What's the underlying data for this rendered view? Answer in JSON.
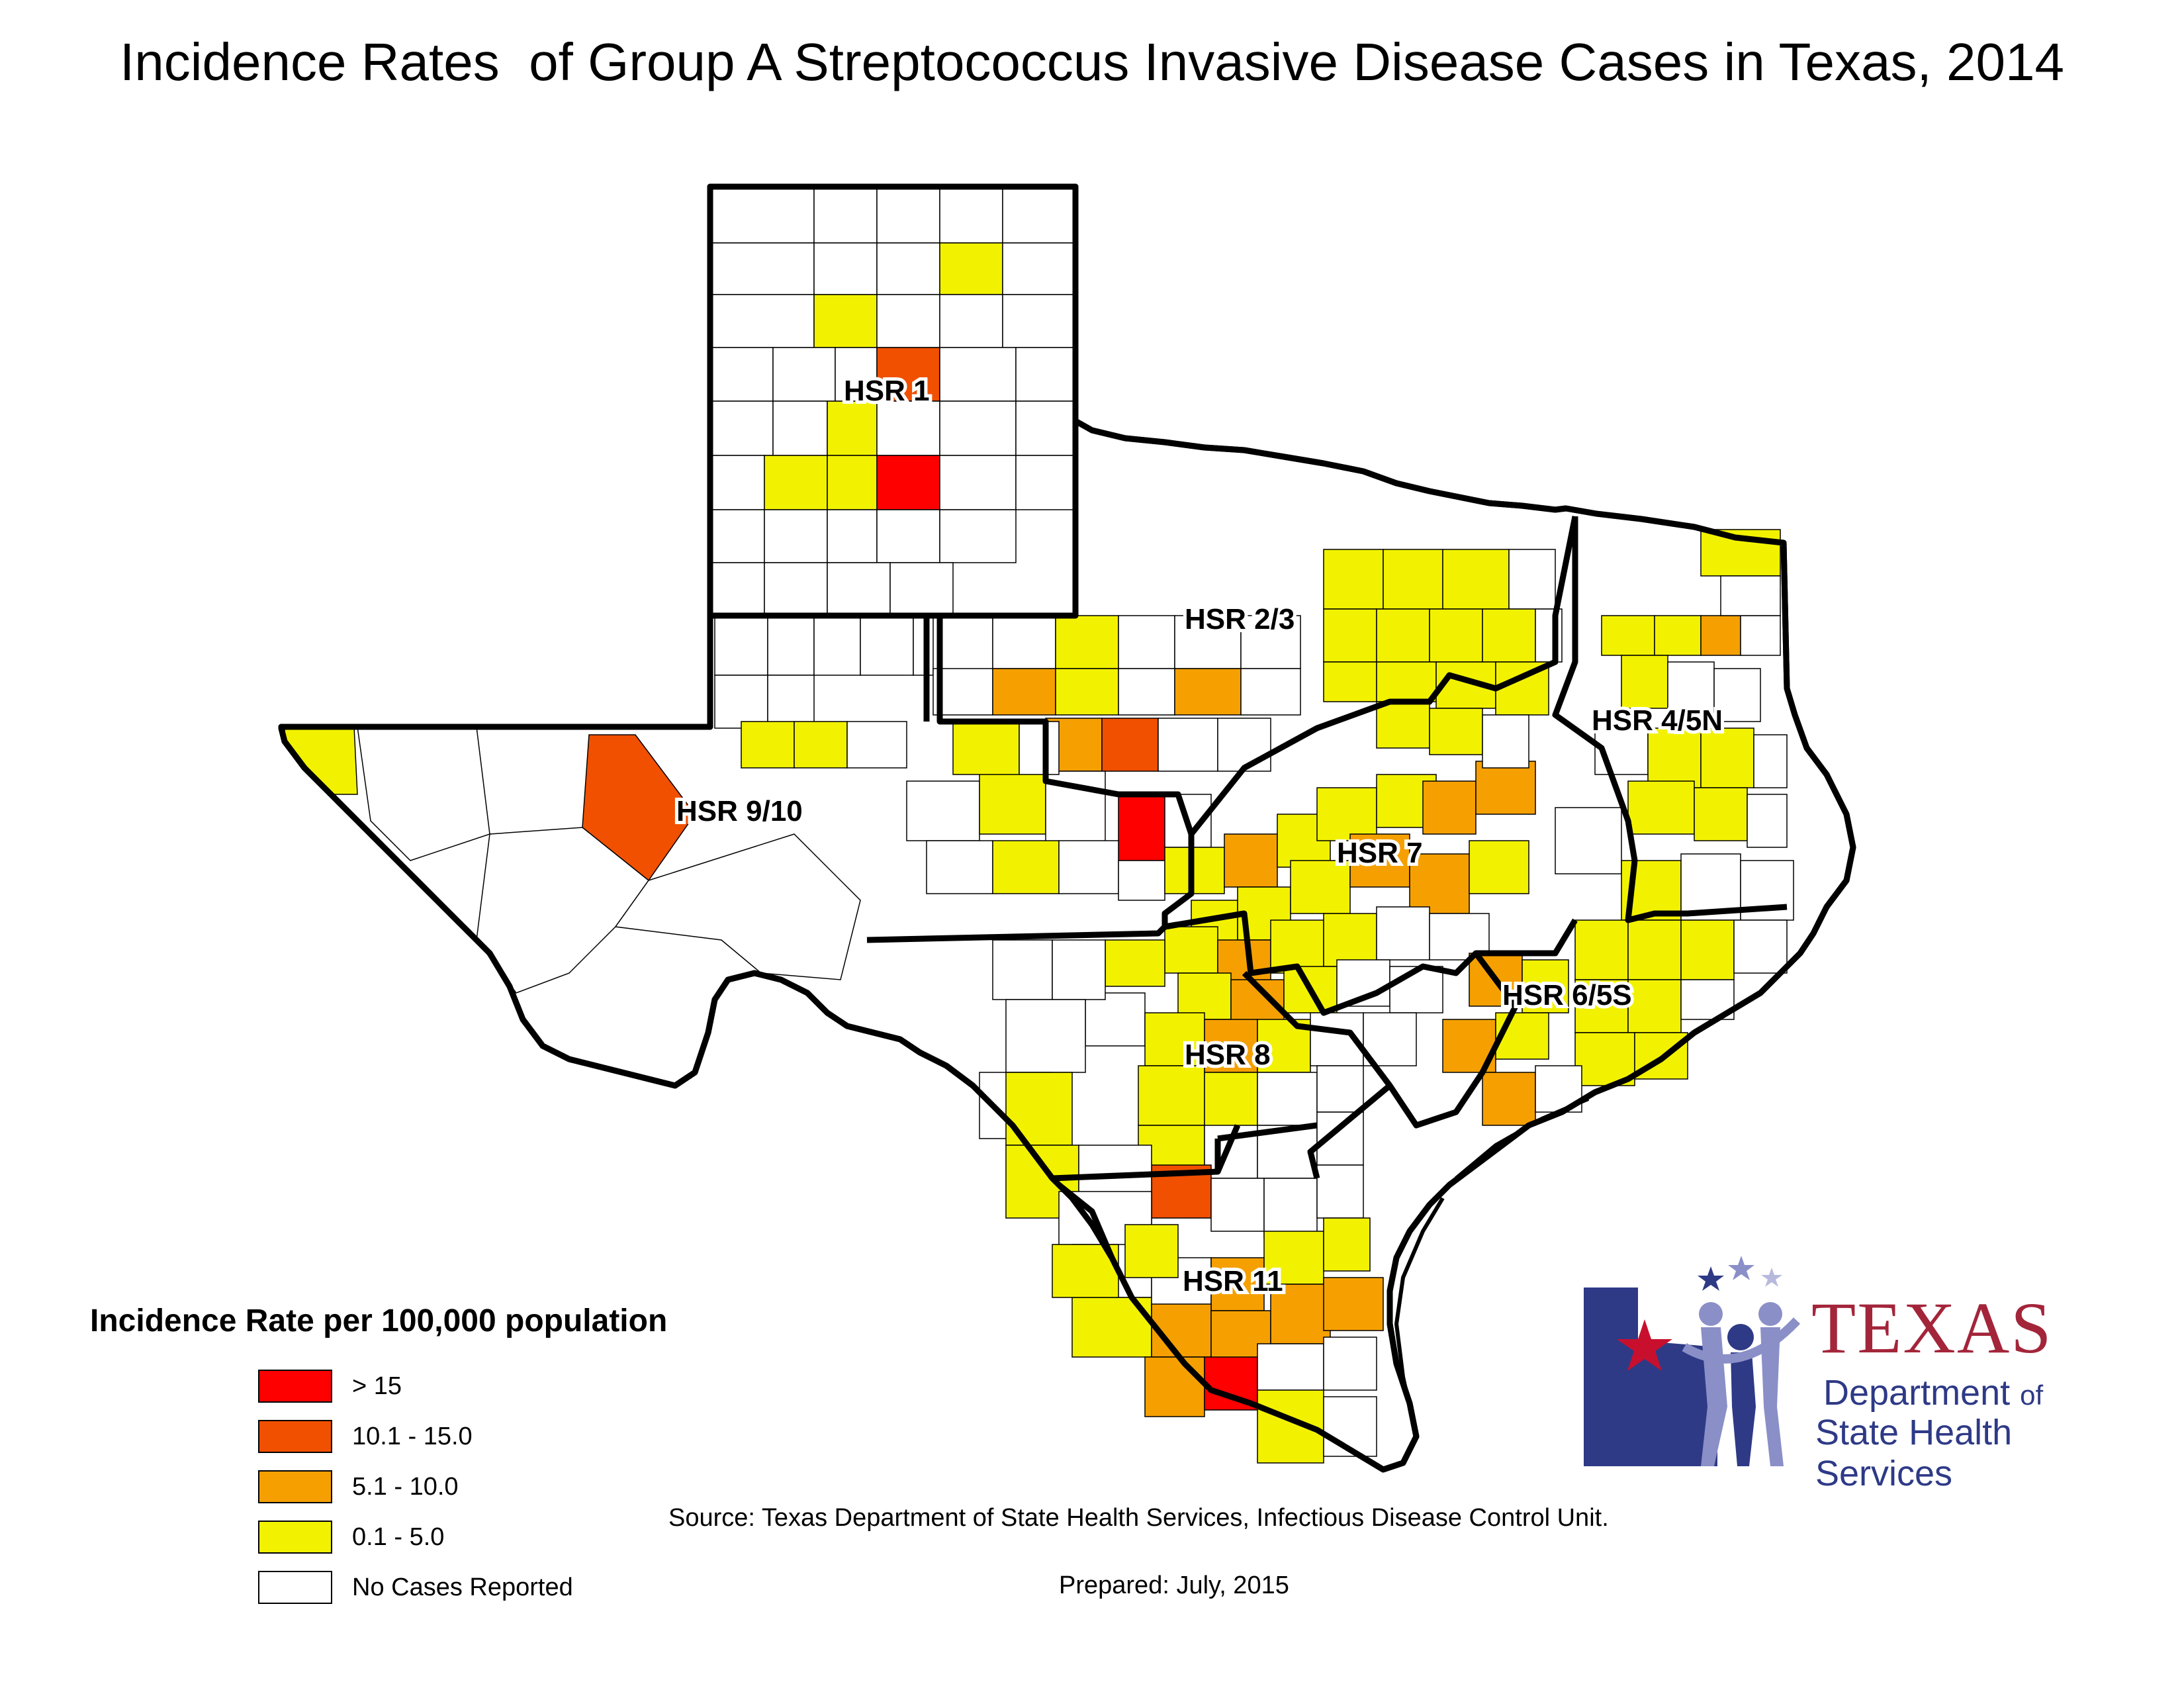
{
  "title": "Incidence Rates  of Group A Streptococcus Invasive Disease Cases in Texas, 2014",
  "colors": {
    "gt15": "#ff0000",
    "r10_15": "#f05000",
    "r5_10": "#f5a000",
    "r0_5": "#f2f200",
    "none": "#ffffff",
    "outline": "#000000",
    "logo_navy": "#2e3a86",
    "logo_red": "#a3253a",
    "logo_lilac": "#8b8fc7"
  },
  "regions": {
    "hsr1": "HSR 1",
    "hsr23": "HSR 2/3",
    "hsr45n": "HSR 4/5N",
    "hsr910": "HSR 9/10",
    "hsr7": "HSR 7",
    "hsr65s": "HSR 6/5S",
    "hsr8": "HSR 8",
    "hsr11": "HSR 11"
  },
  "legend": {
    "title": "Incidence Rate per 100,000 population",
    "items": [
      {
        "label": "> 15",
        "color": "#ff0000"
      },
      {
        "label": "10.1 - 15.0",
        "color": "#f05000"
      },
      {
        "label": "5.1 - 10.0",
        "color": "#f5a000"
      },
      {
        "label": "0.1 - 5.0",
        "color": "#f2f200"
      },
      {
        "label": "No Cases Reported",
        "color": "#ffffff"
      }
    ]
  },
  "source": "Source: Texas Department of State Health Services, Infectious Disease Control Unit.",
  "prepared": "Prepared: July, 2015",
  "logo": {
    "texas": "TEXAS",
    "dept": "Department",
    "of": "of",
    "shs": "State Health Services"
  }
}
